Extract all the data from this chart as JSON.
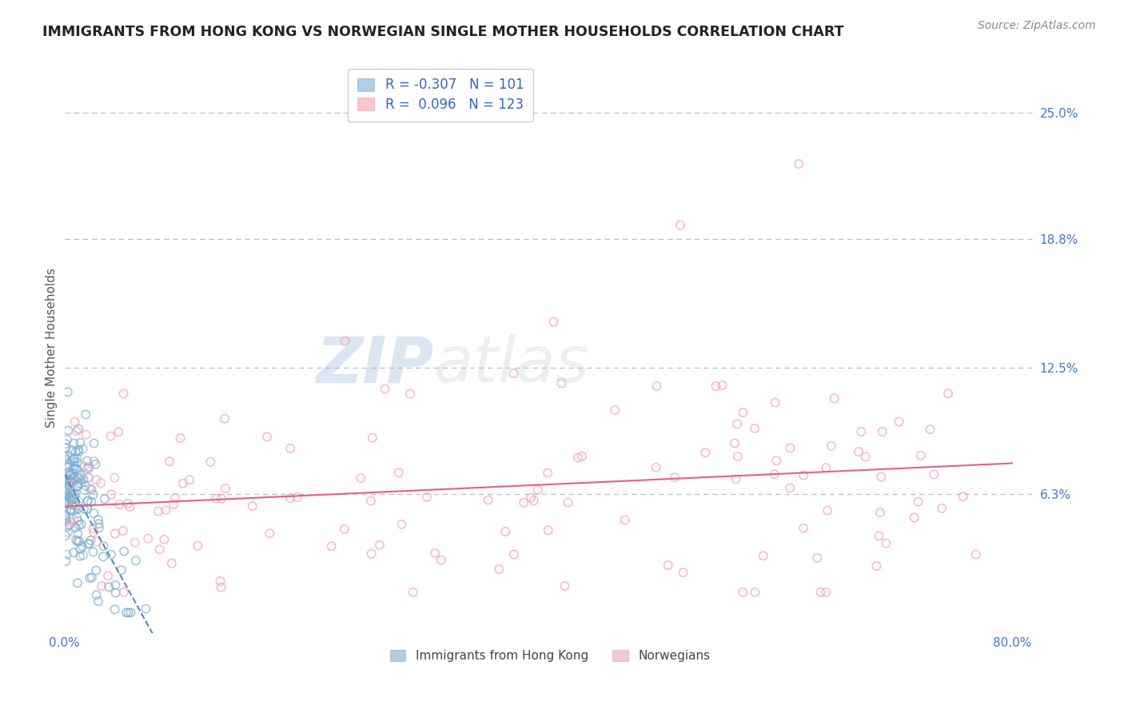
{
  "title": "IMMIGRANTS FROM HONG KONG VS NORWEGIAN SINGLE MOTHER HOUSEHOLDS CORRELATION CHART",
  "source": "Source: ZipAtlas.com",
  "ylabel": "Single Mother Households",
  "watermark_ZIP": "ZIP",
  "watermark_atlas": "atlas",
  "ytick_labels": [
    "6.3%",
    "12.5%",
    "18.8%",
    "25.0%"
  ],
  "ytick_values": [
    0.063,
    0.125,
    0.188,
    0.25
  ],
  "xlim": [
    0.0,
    0.82
  ],
  "ylim": [
    -0.005,
    0.275
  ],
  "blue_R": -0.307,
  "blue_N": 101,
  "pink_R": 0.096,
  "pink_N": 123,
  "blue_color": "#7BAFD4",
  "pink_color": "#F4A0B0",
  "blue_line_color": "#5588BB",
  "pink_line_color": "#E8607A",
  "title_color": "#222222",
  "axis_label_color": "#4477CC",
  "legend_R_color": "#3366BB",
  "background_color": "#FFFFFF",
  "grid_color": "#BBBBCC",
  "seed": 7
}
